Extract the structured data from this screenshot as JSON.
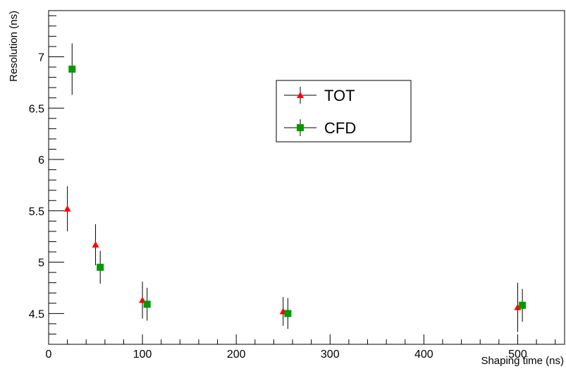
{
  "chart_data": {
    "type": "scatter",
    "title": "",
    "xlabel": "Shaping time (ns)",
    "ylabel": "Resolution (ns)",
    "xlim": [
      0,
      550
    ],
    "ylim": [
      4.2,
      7.45
    ],
    "x_ticks": [
      "0",
      "100",
      "200",
      "300",
      "400",
      "500"
    ],
    "y_ticks": [
      "4.5",
      "5",
      "5.5",
      "6",
      "6.5",
      "7"
    ],
    "grid": false,
    "legend_position": "upper-center",
    "series": [
      {
        "name": "TOT",
        "marker": "triangle",
        "color": "#ff0000",
        "points": [
          {
            "x": 20,
            "y": 5.52,
            "yerr": 0.22
          },
          {
            "x": 50,
            "y": 5.17,
            "yerr": 0.2
          },
          {
            "x": 100,
            "y": 4.63,
            "yerr": 0.18
          },
          {
            "x": 250,
            "y": 4.52,
            "yerr": 0.14
          },
          {
            "x": 500,
            "y": 4.56,
            "yerr": 0.24
          }
        ]
      },
      {
        "name": "CFD",
        "marker": "square",
        "color": "#009a00",
        "points": [
          {
            "x": 25,
            "y": 6.88,
            "yerr": 0.25
          },
          {
            "x": 55,
            "y": 4.95,
            "yerr": 0.16
          },
          {
            "x": 105,
            "y": 4.59,
            "yerr": 0.16
          },
          {
            "x": 255,
            "y": 4.5,
            "yerr": 0.15
          },
          {
            "x": 505,
            "y": 4.58,
            "yerr": 0.16
          }
        ]
      }
    ]
  }
}
